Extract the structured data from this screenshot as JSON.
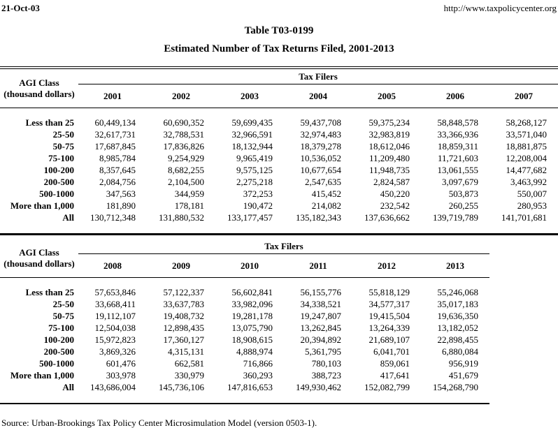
{
  "colors": {
    "text": "#000000",
    "background": "#ffffff"
  },
  "header": {
    "date": "21-Oct-03",
    "url": "http://www.taxpolicycenter.org"
  },
  "title": {
    "line1": "Table T03-0199",
    "line2": "Estimated Number of Tax Returns Filed, 2001-2013"
  },
  "tables": [
    {
      "group_header": "Tax Filers",
      "row_header": {
        "line1": "AGI Class",
        "line2": "(thousand dollars)"
      },
      "years": [
        "2001",
        "2002",
        "2003",
        "2004",
        "2005",
        "2006",
        "2007"
      ],
      "rows": [
        {
          "label": "Less than 25",
          "values": [
            "60,449,134",
            "60,690,352",
            "59,699,435",
            "59,437,708",
            "59,375,234",
            "58,848,578",
            "58,268,127"
          ]
        },
        {
          "label": "25-50",
          "values": [
            "32,617,731",
            "32,788,531",
            "32,966,591",
            "32,974,483",
            "32,983,819",
            "33,366,936",
            "33,571,040"
          ]
        },
        {
          "label": "50-75",
          "values": [
            "17,687,845",
            "17,836,826",
            "18,132,944",
            "18,379,278",
            "18,612,046",
            "18,859,311",
            "18,881,875"
          ]
        },
        {
          "label": "75-100",
          "values": [
            "8,985,784",
            "9,254,929",
            "9,965,419",
            "10,536,052",
            "11,209,480",
            "11,721,603",
            "12,208,004"
          ]
        },
        {
          "label": "100-200",
          "values": [
            "8,357,645",
            "8,682,255",
            "9,575,125",
            "10,677,654",
            "11,948,735",
            "13,061,555",
            "14,477,682"
          ]
        },
        {
          "label": "200-500",
          "values": [
            "2,084,756",
            "2,104,500",
            "2,275,218",
            "2,547,635",
            "2,824,587",
            "3,097,679",
            "3,463,992"
          ]
        },
        {
          "label": "500-1000",
          "values": [
            "347,563",
            "344,959",
            "372,253",
            "415,452",
            "450,220",
            "503,873",
            "550,007"
          ]
        },
        {
          "label": "More than 1,000",
          "values": [
            "181,890",
            "178,181",
            "190,472",
            "214,082",
            "232,542",
            "260,255",
            "280,953"
          ]
        },
        {
          "label": "All",
          "values": [
            "130,712,348",
            "131,880,532",
            "133,177,457",
            "135,182,343",
            "137,636,662",
            "139,719,789",
            "141,701,681"
          ]
        }
      ]
    },
    {
      "group_header": "Tax Filers",
      "row_header": {
        "line1": "AGI Class",
        "line2": "(thousand dollars)"
      },
      "years": [
        "2008",
        "2009",
        "2010",
        "2011",
        "2012",
        "2013"
      ],
      "rows": [
        {
          "label": "Less than 25",
          "values": [
            "57,653,846",
            "57,122,337",
            "56,602,841",
            "56,155,776",
            "55,818,129",
            "55,246,068"
          ]
        },
        {
          "label": "25-50",
          "values": [
            "33,668,411",
            "33,637,783",
            "33,982,096",
            "34,338,521",
            "34,577,317",
            "35,017,183"
          ]
        },
        {
          "label": "50-75",
          "values": [
            "19,112,107",
            "19,408,732",
            "19,281,178",
            "19,247,807",
            "19,415,504",
            "19,636,350"
          ]
        },
        {
          "label": "75-100",
          "values": [
            "12,504,038",
            "12,898,435",
            "13,075,790",
            "13,262,845",
            "13,264,339",
            "13,182,052"
          ]
        },
        {
          "label": "100-200",
          "values": [
            "15,972,823",
            "17,360,127",
            "18,908,615",
            "20,394,892",
            "21,689,107",
            "22,898,455"
          ]
        },
        {
          "label": "200-500",
          "values": [
            "3,869,326",
            "4,315,131",
            "4,888,974",
            "5,361,795",
            "6,041,701",
            "6,880,084"
          ]
        },
        {
          "label": "500-1000",
          "values": [
            "601,476",
            "662,581",
            "716,866",
            "780,103",
            "859,061",
            "956,919"
          ]
        },
        {
          "label": "More than 1,000",
          "values": [
            "303,978",
            "330,979",
            "360,293",
            "388,723",
            "417,641",
            "451,679"
          ]
        },
        {
          "label": "All",
          "values": [
            "143,686,004",
            "145,736,106",
            "147,816,653",
            "149,930,462",
            "152,082,799",
            "154,268,790"
          ]
        }
      ]
    }
  ],
  "footer": {
    "source": "Source: Urban-Brookings Tax Policy Center Microsimulation Model (version 0503-1)."
  }
}
